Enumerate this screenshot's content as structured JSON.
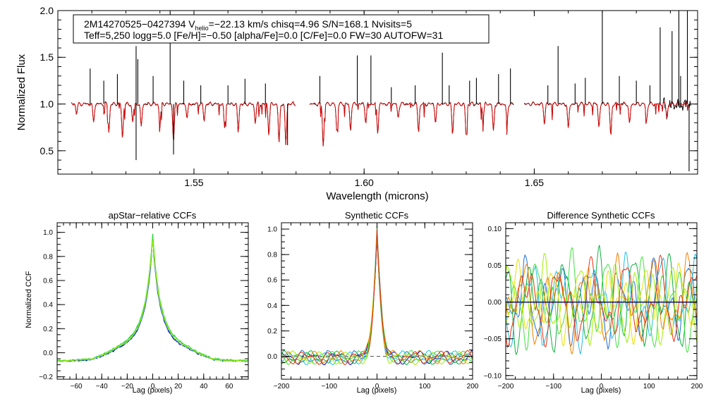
{
  "header": {
    "line1_pre": "2M14270525−0427394  V",
    "line1_sub": "helio",
    "line1_post": "=−22.13 km/s  chisq=4.96  S/N=168.1  Nvisits=5",
    "line2": "Teff=5,250 logg=5.0 [Fe/H]=−0.50 [alpha/Fe]=0.0 [C/Fe]=0.0 FW=30 AUTOFW=31"
  },
  "colors": {
    "observed": "#000000",
    "model": "#e00000",
    "visit_colors": [
      "#0000c8",
      "#1f6fd8",
      "#22c0e0",
      "#10b040",
      "#40e040",
      "#a0f000",
      "#e8e000",
      "#f08000",
      "#e83010"
    ]
  },
  "chart_data": [
    {
      "type": "line",
      "name": "spectrum",
      "title": "",
      "xlabel": "Wavelength (microns)",
      "ylabel": "Normalized Flux",
      "xlim": [
        1.51,
        1.698
      ],
      "ylim": [
        0.25,
        2.0
      ],
      "xticks": [
        1.55,
        1.6,
        1.65
      ],
      "xticklabels": [
        "1.55",
        "1.60",
        "1.65"
      ],
      "yticks": [
        0.5,
        1.0,
        1.5,
        2.0
      ],
      "yticklabels": [
        "0.5",
        "1.0",
        "1.5",
        "2.0"
      ],
      "chips": [
        [
          1.514,
          1.58
        ],
        [
          1.584,
          1.644
        ],
        [
          1.647,
          1.696
        ]
      ],
      "continuum": 1.0,
      "series": [
        {
          "name": "observed",
          "color": "#000000"
        },
        {
          "name": "model",
          "color": "#e00000"
        }
      ],
      "absorption_lines": [
        {
          "x": 1.5155,
          "depth": 0.1
        },
        {
          "x": 1.5205,
          "depth": 0.2
        },
        {
          "x": 1.525,
          "depth": 0.3
        },
        {
          "x": 1.529,
          "depth": 0.37
        },
        {
          "x": 1.532,
          "depth": 0.2
        },
        {
          "x": 1.5345,
          "depth": 0.25
        },
        {
          "x": 1.54,
          "depth": 0.22
        },
        {
          "x": 1.544,
          "depth": 0.4
        },
        {
          "x": 1.548,
          "depth": 0.15
        },
        {
          "x": 1.553,
          "depth": 0.18
        },
        {
          "x": 1.559,
          "depth": 0.25
        },
        {
          "x": 1.563,
          "depth": 0.3
        },
        {
          "x": 1.568,
          "depth": 0.2
        },
        {
          "x": 1.572,
          "depth": 0.32
        },
        {
          "x": 1.575,
          "depth": 0.42
        },
        {
          "x": 1.577,
          "depth": 0.44
        },
        {
          "x": 1.588,
          "depth": 0.45
        },
        {
          "x": 1.592,
          "depth": 0.3
        },
        {
          "x": 1.596,
          "depth": 0.28
        },
        {
          "x": 1.6005,
          "depth": 0.2
        },
        {
          "x": 1.604,
          "depth": 0.3
        },
        {
          "x": 1.61,
          "depth": 0.15
        },
        {
          "x": 1.616,
          "depth": 0.3
        },
        {
          "x": 1.621,
          "depth": 0.2
        },
        {
          "x": 1.626,
          "depth": 0.32
        },
        {
          "x": 1.63,
          "depth": 0.35
        },
        {
          "x": 1.635,
          "depth": 0.15
        },
        {
          "x": 1.638,
          "depth": 0.3
        },
        {
          "x": 1.642,
          "depth": 0.2
        },
        {
          "x": 1.653,
          "depth": 0.2
        },
        {
          "x": 1.66,
          "depth": 0.28
        },
        {
          "x": 1.669,
          "depth": 0.25
        },
        {
          "x": 1.6725,
          "depth": 0.35
        },
        {
          "x": 1.678,
          "depth": 0.22
        },
        {
          "x": 1.683,
          "depth": 0.18
        },
        {
          "x": 1.689,
          "depth": 0.15
        }
      ],
      "emission_spikes": [
        {
          "x": 1.5195,
          "peak": 1.38
        },
        {
          "x": 1.5235,
          "peak": 1.25
        },
        {
          "x": 1.5275,
          "peak": 1.32
        },
        {
          "x": 1.533,
          "peak": 1.62
        },
        {
          "x": 1.5335,
          "peak": 1.48
        },
        {
          "x": 1.538,
          "peak": 1.3
        },
        {
          "x": 1.543,
          "peak": 2.0
        },
        {
          "x": 1.547,
          "peak": 1.25
        },
        {
          "x": 1.552,
          "peak": 1.2
        },
        {
          "x": 1.56,
          "peak": 1.2
        },
        {
          "x": 1.565,
          "peak": 1.27
        },
        {
          "x": 1.571,
          "peak": 1.22
        },
        {
          "x": 1.587,
          "peak": 1.3
        },
        {
          "x": 1.598,
          "peak": 1.52
        },
        {
          "x": 1.602,
          "peak": 1.52
        },
        {
          "x": 1.608,
          "peak": 1.18
        },
        {
          "x": 1.615,
          "peak": 1.2
        },
        {
          "x": 1.623,
          "peak": 1.55
        },
        {
          "x": 1.625,
          "peak": 1.2
        },
        {
          "x": 1.631,
          "peak": 1.25
        },
        {
          "x": 1.633,
          "peak": 1.28
        },
        {
          "x": 1.6395,
          "peak": 1.32
        },
        {
          "x": 1.643,
          "peak": 1.38
        },
        {
          "x": 1.654,
          "peak": 1.2
        },
        {
          "x": 1.657,
          "peak": 1.62
        },
        {
          "x": 1.662,
          "peak": 1.22
        },
        {
          "x": 1.665,
          "peak": 1.28
        },
        {
          "x": 1.67,
          "peak": 2.0
        },
        {
          "x": 1.675,
          "peak": 1.3
        },
        {
          "x": 1.68,
          "peak": 1.25
        },
        {
          "x": 1.684,
          "peak": 1.2
        },
        {
          "x": 1.687,
          "peak": 1.82
        },
        {
          "x": 1.6905,
          "peak": 1.78
        },
        {
          "x": 1.6925,
          "peak": 2.0
        },
        {
          "x": 1.693,
          "peak": 1.3
        },
        {
          "x": 1.695,
          "peak": 2.0
        }
      ]
    },
    {
      "type": "line",
      "name": "apstar-ccf",
      "title": "apStar−relative CCFs",
      "xlabel": "Lag (pixels)",
      "ylabel": "Normalized CCF",
      "xlim": [
        -75,
        75
      ],
      "ylim": [
        -0.22,
        1.08
      ],
      "xticks": [
        -60,
        -40,
        -20,
        0,
        20,
        40,
        60
      ],
      "xticklabels": [
        "−60",
        "−40",
        "−20",
        "0",
        "20",
        "40",
        "60"
      ],
      "yticks": [
        -0.2,
        0.0,
        0.2,
        0.4,
        0.6,
        0.8,
        1.0
      ],
      "yticklabels": [
        "−0.2",
        "0.0",
        "0.2",
        "0.4",
        "0.6",
        "0.8",
        "1.0"
      ],
      "peak": 0.98,
      "series": [
        {
          "name": "visit 1",
          "color": "#0000c8",
          "offset": 0.0
        },
        {
          "name": "visit 2",
          "color": "#1f6fd8",
          "offset": 0.01
        },
        {
          "name": "visit 3",
          "color": "#10b040",
          "offset": 0.05
        },
        {
          "name": "visit 4",
          "color": "#40e040",
          "offset": 0.06
        },
        {
          "name": "visit 5",
          "color": "#a0f000",
          "offset": 0.03
        }
      ]
    },
    {
      "type": "line",
      "name": "synthetic-ccf",
      "title": "Synthetic CCFs",
      "xlabel": "Lag (pixels)",
      "ylabel": "",
      "xlim": [
        -200,
        200
      ],
      "ylim": [
        -0.18,
        1.05
      ],
      "xticks": [
        -200,
        -100,
        0,
        100,
        200
      ],
      "xticklabels": [
        "−200",
        "−100",
        "0",
        "100",
        "200"
      ],
      "yticks": [
        0.0,
        0.2,
        0.4,
        0.6,
        0.8,
        1.0
      ],
      "yticklabels": [
        "0.0",
        "0.2",
        "0.4",
        "0.6",
        "0.8",
        "1.0"
      ],
      "reference_line": 0.0,
      "peak": 1.0,
      "series": [
        {
          "name": "visit 1",
          "color": "#0000c8"
        },
        {
          "name": "visit 2",
          "color": "#1f6fd8"
        },
        {
          "name": "visit 3",
          "color": "#22c0e0"
        },
        {
          "name": "visit 4",
          "color": "#10b040"
        },
        {
          "name": "visit 5",
          "color": "#40e040"
        },
        {
          "name": "visit 6",
          "color": "#a0f000"
        },
        {
          "name": "visit 7",
          "color": "#f08000"
        },
        {
          "name": "visit 8",
          "color": "#e83010"
        }
      ]
    },
    {
      "type": "line",
      "name": "difference-ccf",
      "title": "Difference Synthetic CCFs",
      "xlabel": "Lag (pixels)",
      "ylabel": "",
      "xlim": [
        -200,
        200
      ],
      "ylim": [
        -0.105,
        0.108
      ],
      "xticks": [
        -200,
        -100,
        0,
        100,
        200
      ],
      "xticklabels": [
        "−200",
        "−100",
        "0",
        "100",
        "200"
      ],
      "yticks": [
        -0.1,
        -0.05,
        0.0,
        0.05,
        0.1
      ],
      "yticklabels": [
        "−0.10",
        "−0.05",
        "0.00",
        "0.05",
        "0.10"
      ],
      "reference_line": 0.0,
      "series": [
        {
          "name": "visit 1",
          "color": "#1f6fd8"
        },
        {
          "name": "visit 2",
          "color": "#22c0e0"
        },
        {
          "name": "visit 3",
          "color": "#10b040"
        },
        {
          "name": "visit 4",
          "color": "#40e040"
        },
        {
          "name": "visit 5",
          "color": "#a0f000"
        },
        {
          "name": "visit 6",
          "color": "#e8e000"
        },
        {
          "name": "visit 7",
          "color": "#f08000"
        },
        {
          "name": "visit 8",
          "color": "#e83010"
        }
      ]
    }
  ]
}
